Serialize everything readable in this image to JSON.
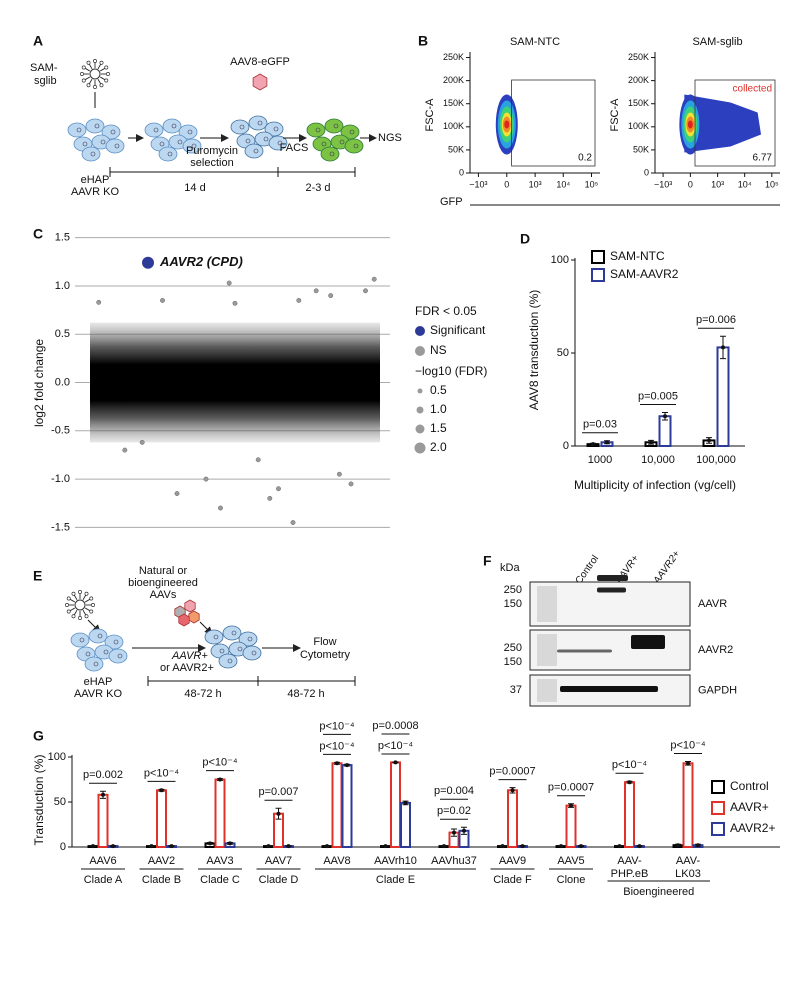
{
  "panel_labels": [
    "A",
    "B",
    "C",
    "D",
    "E",
    "F",
    "G"
  ],
  "panel_a": {
    "library": [
      "SAM-",
      "sglib"
    ],
    "virus": "AAV8-eGFP",
    "selection": [
      "Puromycin",
      "selection"
    ],
    "sorting": "FACS",
    "readout": "NGS",
    "cell_line": [
      "eHAP",
      "AAVR KO"
    ],
    "durations": [
      "14 d",
      "2-3 d"
    ]
  },
  "panel_b": {
    "type": "flow",
    "plots": [
      {
        "title": "SAM-NTC",
        "gate_percent": 0.2
      },
      {
        "title": "SAM-sglib",
        "gate_percent": 6.77,
        "gate_label": "collected"
      }
    ],
    "ylabel": "FSC-A",
    "xlabel": "GFP",
    "ylim": [
      0,
      262000
    ],
    "yticks": [
      0,
      {
        "value": 50000,
        "label": "50K"
      },
      {
        "value": 100000,
        "label": "100K"
      },
      {
        "value": 150000,
        "label": "150K"
      },
      {
        "value": 200000,
        "label": "200K"
      },
      {
        "value": 250000,
        "label": "250K"
      }
    ],
    "xscale": "biexponential",
    "xlim": [
      -2000,
      200000
    ],
    "xticks": [
      {
        "value": -1000,
        "label": "−10³"
      },
      0,
      {
        "value": 1000,
        "label": "10³"
      },
      {
        "value": 10000,
        "label": "10⁴"
      },
      {
        "value": 100000,
        "label": "10⁵"
      }
    ]
  },
  "panel_c": {
    "type": "scatter",
    "ylabel": "log2 fold change",
    "xlim": [
      0,
      1
    ],
    "ylim": [
      -1.6,
      1.6
    ],
    "yticks": [
      {
        "value": 1.5,
        "label": "1.5"
      },
      {
        "value": 1,
        "label": "1.0"
      },
      0.5,
      {
        "value": 0,
        "label": "0.0"
      },
      -0.5,
      {
        "value": -1,
        "label": "-1.0"
      },
      -1.5
    ],
    "grid": true,
    "highlight": {
      "label": "AAVR2 (CPD)",
      "x": 0.2,
      "y": 1.24,
      "color": "#2e3a97"
    },
    "points": {
      "x": [
        0.03,
        0.12,
        0.25,
        0.4,
        0.5,
        0.48,
        0.62,
        0.7,
        0.78,
        0.83,
        0.9,
        0.95,
        0.3,
        0.45,
        0.65,
        0.72,
        0.86,
        0.98,
        0.18,
        0.58
      ],
      "y": [
        0.83,
        -0.7,
        0.85,
        -1.0,
        0.82,
        1.03,
        -1.2,
        -1.45,
        0.95,
        0.9,
        -1.05,
        0.95,
        -1.15,
        -1.3,
        -1.1,
        0.85,
        -0.95,
        1.07,
        -0.62,
        -0.8
      ],
      "color": "#9a9a9a"
    },
    "legend_title": "FDR < 0.05",
    "legend": [
      {
        "name": "Significant",
        "color": "#2e3a97"
      },
      {
        "name": "NS",
        "color": "#9a9a9a"
      }
    ],
    "size_title": "−log10 (FDR)",
    "sizes": [
      0.5,
      {
        "value": 1,
        "label": "1.0"
      },
      1.5,
      {
        "value": 2,
        "label": "2.0"
      }
    ]
  },
  "panel_d": {
    "type": "bar",
    "ylabel": "AAV8 transduction (%)",
    "xlabel": "Multiplicity of infection (vg/cell)",
    "categories": [
      "1000",
      "10,000",
      "100,000"
    ],
    "series": [
      {
        "name": "SAM-NTC",
        "color": "#000000",
        "values": [
          1,
          2,
          3
        ],
        "errors": [
          0.5,
          1,
          1.5
        ]
      },
      {
        "name": "SAM-AAVR2",
        "color": "#2e3a97",
        "values": [
          2,
          16,
          53
        ],
        "errors": [
          0.8,
          2,
          6
        ]
      }
    ],
    "ylim": [
      0,
      100
    ],
    "yticks": [
      0,
      50,
      100
    ],
    "pvalues": [
      "p=0.03",
      "p=0.005",
      "p=0.006"
    ]
  },
  "panel_e": {
    "vectors": [
      "Natural or",
      "bioengineered",
      "AAVs"
    ],
    "conditions": [
      "AAVR+",
      "or AAVR2+"
    ],
    "readout": [
      "Flow",
      "Cytometry"
    ],
    "cell_line": [
      "eHAP",
      "AAVR KO"
    ],
    "durations": [
      "48-72 h",
      "48-72 h"
    ]
  },
  "panel_f": {
    "unit": "kDa",
    "lanes": [
      "Control",
      "AAVR+",
      "AAVR2+"
    ],
    "blots": [
      {
        "target": "AAVR",
        "markers": [
          250,
          150
        ]
      },
      {
        "target": "AAVR2",
        "markers": [
          250,
          150
        ]
      },
      {
        "target": "GAPDH",
        "markers": [
          37
        ]
      }
    ]
  },
  "panel_g": {
    "type": "bar",
    "ylabel": "Transduction (%)",
    "categories": [
      "AAV6",
      "AAV2",
      "AAV3",
      "AAV7",
      "AAV8",
      "AAVrh10",
      "AAVhu37",
      "AAV9",
      "AAV5",
      [
        "AAV-",
        "PHP.eB"
      ],
      [
        "AAV-",
        "LK03"
      ]
    ],
    "clades": [
      "Clade A",
      "Clade B",
      "Clade C",
      "Clade D",
      "Clade E",
      "Clade E",
      "Clade E",
      "Clade F",
      "Clone",
      "Bioengineered",
      "Bioengineered"
    ],
    "series": [
      {
        "name": "Control",
        "color": "#000000",
        "values": [
          1,
          1,
          4,
          1,
          1,
          1,
          1,
          1,
          1,
          1,
          2
        ],
        "errors": [
          0.5,
          0.5,
          1,
          0.5,
          0.5,
          0.5,
          0.5,
          0.5,
          0.5,
          0.5,
          1
        ]
      },
      {
        "name": "AAVR+",
        "color": "#e0312b",
        "values": [
          58,
          63,
          75,
          37,
          93,
          94,
          16,
          63,
          46,
          72,
          93
        ],
        "errors": [
          4,
          1,
          1,
          6,
          1,
          0.5,
          4,
          3,
          2,
          1,
          2
        ]
      },
      {
        "name": "AAVR2+",
        "color": "#2e3a97",
        "values": [
          1,
          1,
          4,
          1,
          91,
          49,
          18,
          1,
          1,
          1,
          2
        ],
        "errors": [
          0.5,
          0.5,
          1,
          0.5,
          1,
          2,
          4,
          0.5,
          0.5,
          0.5,
          1
        ]
      }
    ],
    "ylim": [
      0,
      100
    ],
    "yticks": [
      0,
      50,
      100
    ],
    "pvalues": [
      [
        "p=0.002"
      ],
      [
        "p<10⁻⁴"
      ],
      [
        "p<10⁻⁴"
      ],
      [
        "p=0.007"
      ],
      [
        "p<10⁻⁴",
        "p<10⁻⁴"
      ],
      [
        "p<10⁻⁴",
        "p=0.0008"
      ],
      [
        "p=0.02",
        "p=0.004"
      ],
      [
        "p=0.0007"
      ],
      [
        "p=0.0007"
      ],
      [
        "p<10⁻⁴"
      ],
      [
        "p<10⁻⁴"
      ]
    ]
  }
}
